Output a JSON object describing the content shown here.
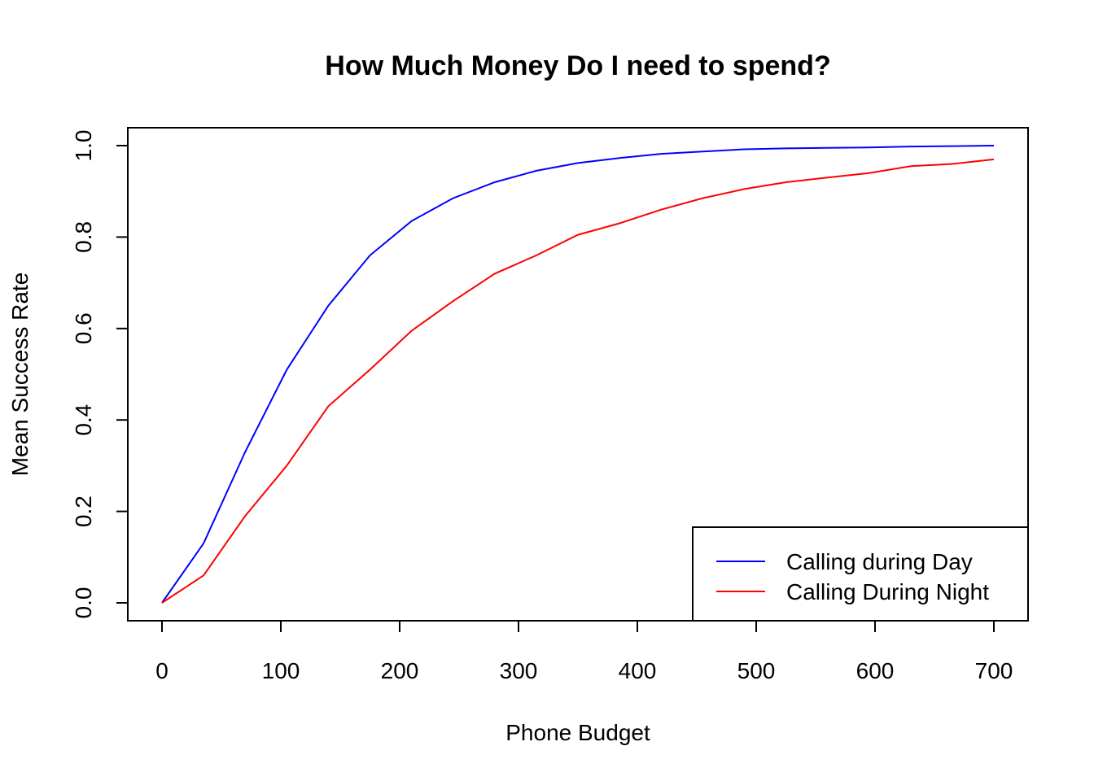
{
  "chart_data": {
    "type": "line",
    "title": "How Much Money Do I need to spend?",
    "xlabel": "Phone Budget",
    "ylabel": "Mean Success Rate",
    "xlim": [
      0,
      700
    ],
    "ylim": [
      0,
      1
    ],
    "x_ticks": [
      "0",
      "100",
      "200",
      "300",
      "400",
      "500",
      "600",
      "700"
    ],
    "y_ticks": [
      "0.0",
      "0.2",
      "0.4",
      "0.6",
      "0.8",
      "1.0"
    ],
    "x_tick_values": [
      0,
      100,
      200,
      300,
      400,
      500,
      600,
      700
    ],
    "y_tick_values": [
      0,
      0.2,
      0.4,
      0.6,
      0.8,
      1.0
    ],
    "grid": false,
    "legend_position": "bottom-right",
    "x": [
      0,
      35,
      70,
      105,
      140,
      175,
      210,
      245,
      280,
      315,
      350,
      385,
      420,
      455,
      490,
      525,
      560,
      595,
      630,
      665,
      700
    ],
    "series": [
      {
        "name": "Calling during Day",
        "color": "#0000ff",
        "values": [
          0.0,
          0.13,
          0.33,
          0.51,
          0.65,
          0.76,
          0.835,
          0.885,
          0.92,
          0.945,
          0.962,
          0.973,
          0.982,
          0.987,
          0.992,
          0.994,
          0.995,
          0.996,
          0.998,
          0.999,
          1.0
        ]
      },
      {
        "name": "Calling During Night",
        "color": "#ff0000",
        "values": [
          0.0,
          0.06,
          0.19,
          0.3,
          0.43,
          0.51,
          0.595,
          0.66,
          0.72,
          0.76,
          0.805,
          0.83,
          0.86,
          0.885,
          0.905,
          0.92,
          0.93,
          0.94,
          0.955,
          0.96,
          0.97
        ]
      }
    ]
  }
}
